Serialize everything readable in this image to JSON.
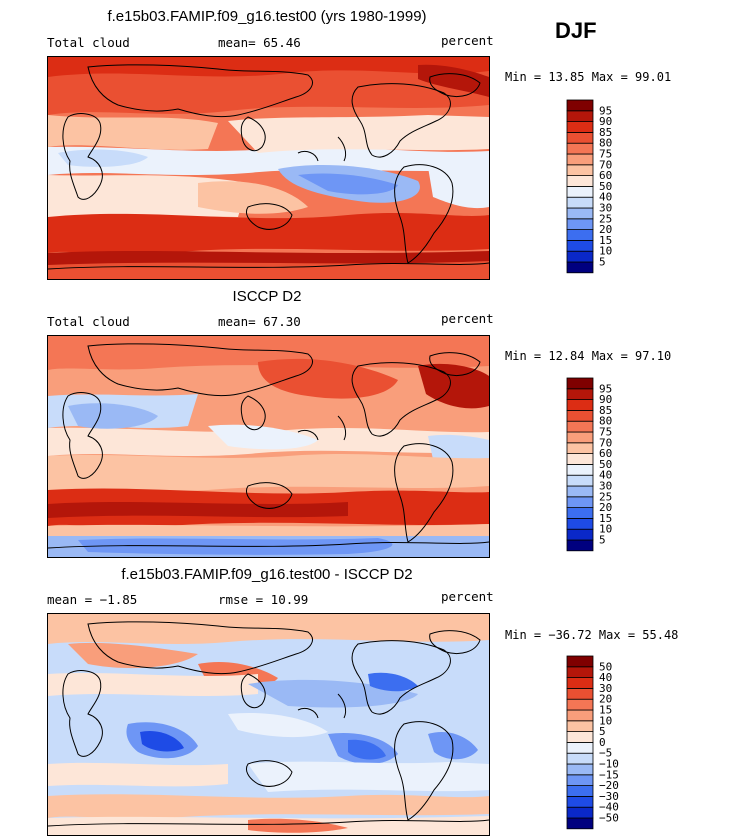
{
  "season": "DJF",
  "colors": {
    "scale": [
      "#00007f",
      "#0a28c8",
      "#1e4be6",
      "#3c6ef0",
      "#6e96f5",
      "#9ab9f5",
      "#c8dcfa",
      "#ebf2fc",
      "#fde6d8",
      "#fcc3a3",
      "#f99e7b",
      "#f47655",
      "#ea5032",
      "#dc2d14",
      "#b4160a",
      "#7f0000"
    ]
  },
  "panels": [
    {
      "title": "f.e15b03.FAMIP.f09_g16.test00 (yrs 1980-1999)",
      "left_label": "Total cloud",
      "mid_label": "mean=  65.46",
      "right_label": "percent",
      "minmax": "Min =  13.85 Max =  99.01",
      "colorbar_labels": [
        "5",
        "10",
        "15",
        "20",
        "25",
        "30",
        "40",
        "50",
        "60",
        "70",
        "75",
        "80",
        "85",
        "90",
        "95"
      ]
    },
    {
      "title": "ISCCP D2",
      "left_label": "Total cloud",
      "mid_label": "mean=  67.30",
      "right_label": "percent",
      "minmax": "Min =  12.84 Max =  97.10",
      "colorbar_labels": [
        "5",
        "10",
        "15",
        "20",
        "25",
        "30",
        "40",
        "50",
        "60",
        "70",
        "75",
        "80",
        "85",
        "90",
        "95"
      ]
    },
    {
      "title": "f.e15b03.FAMIP.f09_g16.test00 - ISCCP D2",
      "left_label": "mean =  −1.85",
      "mid_label": "rmse =  10.99",
      "right_label": "percent",
      "minmax": "Min = −36.72 Max =  55.48",
      "colorbar_labels": [
        "−50",
        "−40",
        "−30",
        "−20",
        "−15",
        "−10",
        "−5",
        "0",
        "5",
        "10",
        "15",
        "20",
        "30",
        "40",
        "50"
      ]
    }
  ],
  "chart_data": [
    {
      "type": "heatmap",
      "title": "f.e15b03.FAMIP.f09_g16.test00 (yrs 1980-1999)",
      "variable": "Total cloud",
      "units": "percent",
      "mean": 65.46,
      "min": 13.85,
      "max": 99.01,
      "contour_levels": [
        5,
        10,
        15,
        20,
        25,
        30,
        40,
        50,
        60,
        70,
        75,
        80,
        85,
        90,
        95
      ]
    },
    {
      "type": "heatmap",
      "title": "ISCCP D2",
      "variable": "Total cloud",
      "units": "percent",
      "mean": 67.3,
      "min": 12.84,
      "max": 97.1,
      "contour_levels": [
        5,
        10,
        15,
        20,
        25,
        30,
        40,
        50,
        60,
        70,
        75,
        80,
        85,
        90,
        95
      ]
    },
    {
      "type": "heatmap",
      "title": "f.e15b03.FAMIP.f09_g16.test00 - ISCCP D2",
      "units": "percent",
      "mean": -1.85,
      "rmse": 10.99,
      "min": -36.72,
      "max": 55.48,
      "contour_levels": [
        -50,
        -40,
        -30,
        -20,
        -15,
        -10,
        -5,
        0,
        5,
        10,
        15,
        20,
        30,
        40,
        50
      ]
    }
  ]
}
